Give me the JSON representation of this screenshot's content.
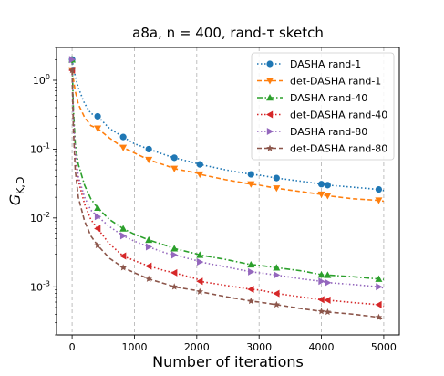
{
  "chart_data": {
    "type": "line",
    "title": "a8a, n = 400, rand-τ sketch",
    "xlabel": "Number of iterations",
    "ylabel": "G_{K,D}",
    "xlim": [
      -250,
      5250
    ],
    "ylim": [
      0.0002,
      3.0
    ],
    "yscale": "log",
    "grid": "x-dashed",
    "legend_position": "top-right",
    "x_ticks": [
      {
        "value": 0,
        "label": "0"
      },
      {
        "value": 1000,
        "label": "1000"
      },
      {
        "value": 2000,
        "label": "2000"
      },
      {
        "value": 3000,
        "label": "3000"
      },
      {
        "value": 4000,
        "label": "4000"
      },
      {
        "value": 5000,
        "label": "5000"
      }
    ],
    "y_ticks": [
      {
        "value": 1,
        "label": "10^0"
      },
      {
        "value": 0.1,
        "label": "10^-1"
      },
      {
        "value": 0.01,
        "label": "10^-2"
      },
      {
        "value": 0.001,
        "label": "10^-3"
      }
    ],
    "series": [
      {
        "name": "DASHA rand-1",
        "color": "#1f77b4",
        "dash": "dotted",
        "marker": "circle",
        "x": [
          0,
          20,
          50,
          100,
          200,
          300,
          410,
          600,
          820,
          1000,
          1230,
          1500,
          1640,
          2000,
          2050,
          2460,
          2870,
          3000,
          3280,
          3690,
          4000,
          4100,
          4510,
          4920,
          5000
        ],
        "y": [
          2.0,
          1.6,
          1.15,
          0.78,
          0.46,
          0.33,
          0.3,
          0.2,
          0.15,
          0.12,
          0.1,
          0.082,
          0.075,
          0.062,
          0.06,
          0.05,
          0.043,
          0.042,
          0.038,
          0.034,
          0.031,
          0.03,
          0.028,
          0.026,
          0.025
        ]
      },
      {
        "name": "det-DASHA rand-1",
        "color": "#ff7f0e",
        "dash": "dashed",
        "marker": "triangle-down",
        "x": [
          0,
          20,
          50,
          100,
          200,
          300,
          410,
          600,
          820,
          1000,
          1230,
          1500,
          1640,
          2000,
          2050,
          2460,
          2870,
          3000,
          3280,
          3690,
          4000,
          4100,
          4510,
          4920,
          5000
        ],
        "y": [
          1.4,
          1.05,
          0.7,
          0.45,
          0.29,
          0.22,
          0.2,
          0.145,
          0.105,
          0.088,
          0.07,
          0.058,
          0.052,
          0.045,
          0.043,
          0.036,
          0.031,
          0.03,
          0.027,
          0.024,
          0.022,
          0.021,
          0.019,
          0.018,
          0.0175
        ]
      },
      {
        "name": "DASHA rand-40",
        "color": "#2ca02c",
        "dash": "dashdot",
        "marker": "triangle-up",
        "x": [
          0,
          20,
          50,
          100,
          200,
          300,
          410,
          600,
          820,
          1000,
          1230,
          1500,
          1640,
          2000,
          2050,
          2460,
          2870,
          3000,
          3280,
          3690,
          4000,
          4100,
          4510,
          4920,
          5000
        ],
        "y": [
          2.0,
          0.4,
          0.12,
          0.06,
          0.03,
          0.019,
          0.014,
          0.0095,
          0.007,
          0.0058,
          0.0048,
          0.004,
          0.0036,
          0.003,
          0.0029,
          0.0025,
          0.0021,
          0.00205,
          0.0019,
          0.0017,
          0.0015,
          0.00148,
          0.0014,
          0.0013,
          0.00128
        ]
      },
      {
        "name": "det-DASHA rand-40",
        "color": "#d62728",
        "dash": "dotted",
        "marker": "triangle-left",
        "x": [
          0,
          20,
          50,
          100,
          200,
          300,
          410,
          600,
          820,
          1000,
          1230,
          1500,
          1640,
          2000,
          2050,
          2460,
          2870,
          3000,
          3280,
          3690,
          4000,
          4100,
          4510,
          4920,
          5000
        ],
        "y": [
          1.4,
          0.3,
          0.08,
          0.035,
          0.016,
          0.0095,
          0.007,
          0.0042,
          0.0028,
          0.0024,
          0.002,
          0.0017,
          0.0016,
          0.0013,
          0.0012,
          0.00105,
          0.00092,
          0.0009,
          0.0008,
          0.00071,
          0.00065,
          0.00064,
          0.00059,
          0.00055,
          0.00052
        ]
      },
      {
        "name": "DASHA rand-80",
        "color": "#9467bd",
        "dash": "dotted",
        "marker": "triangle-right",
        "x": [
          0,
          20,
          50,
          100,
          200,
          300,
          410,
          600,
          820,
          1000,
          1230,
          1500,
          1640,
          2000,
          2050,
          2460,
          2870,
          3000,
          3280,
          3690,
          4000,
          4100,
          4510,
          4920,
          5000
        ],
        "y": [
          2.0,
          0.3,
          0.09,
          0.04,
          0.02,
          0.013,
          0.0105,
          0.0075,
          0.0055,
          0.0046,
          0.0038,
          0.0031,
          0.0029,
          0.0024,
          0.0023,
          0.00195,
          0.00165,
          0.0016,
          0.00148,
          0.0013,
          0.0012,
          0.00115,
          0.00108,
          0.001,
          0.00096
        ]
      },
      {
        "name": "det-DASHA rand-80",
        "color": "#8c564b",
        "dash": "dashed",
        "marker": "star",
        "x": [
          0,
          20,
          50,
          100,
          200,
          300,
          410,
          600,
          820,
          1000,
          1230,
          1500,
          1640,
          2000,
          2050,
          2460,
          2870,
          3000,
          3280,
          3690,
          4000,
          4100,
          4510,
          4920,
          5000
        ],
        "y": [
          1.4,
          0.2,
          0.05,
          0.02,
          0.009,
          0.0055,
          0.004,
          0.0026,
          0.0019,
          0.0016,
          0.0013,
          0.0011,
          0.001,
          0.00088,
          0.00085,
          0.00072,
          0.00062,
          0.0006,
          0.00055,
          0.00048,
          0.00044,
          0.00043,
          0.0004,
          0.00036,
          0.00034
        ]
      }
    ]
  }
}
